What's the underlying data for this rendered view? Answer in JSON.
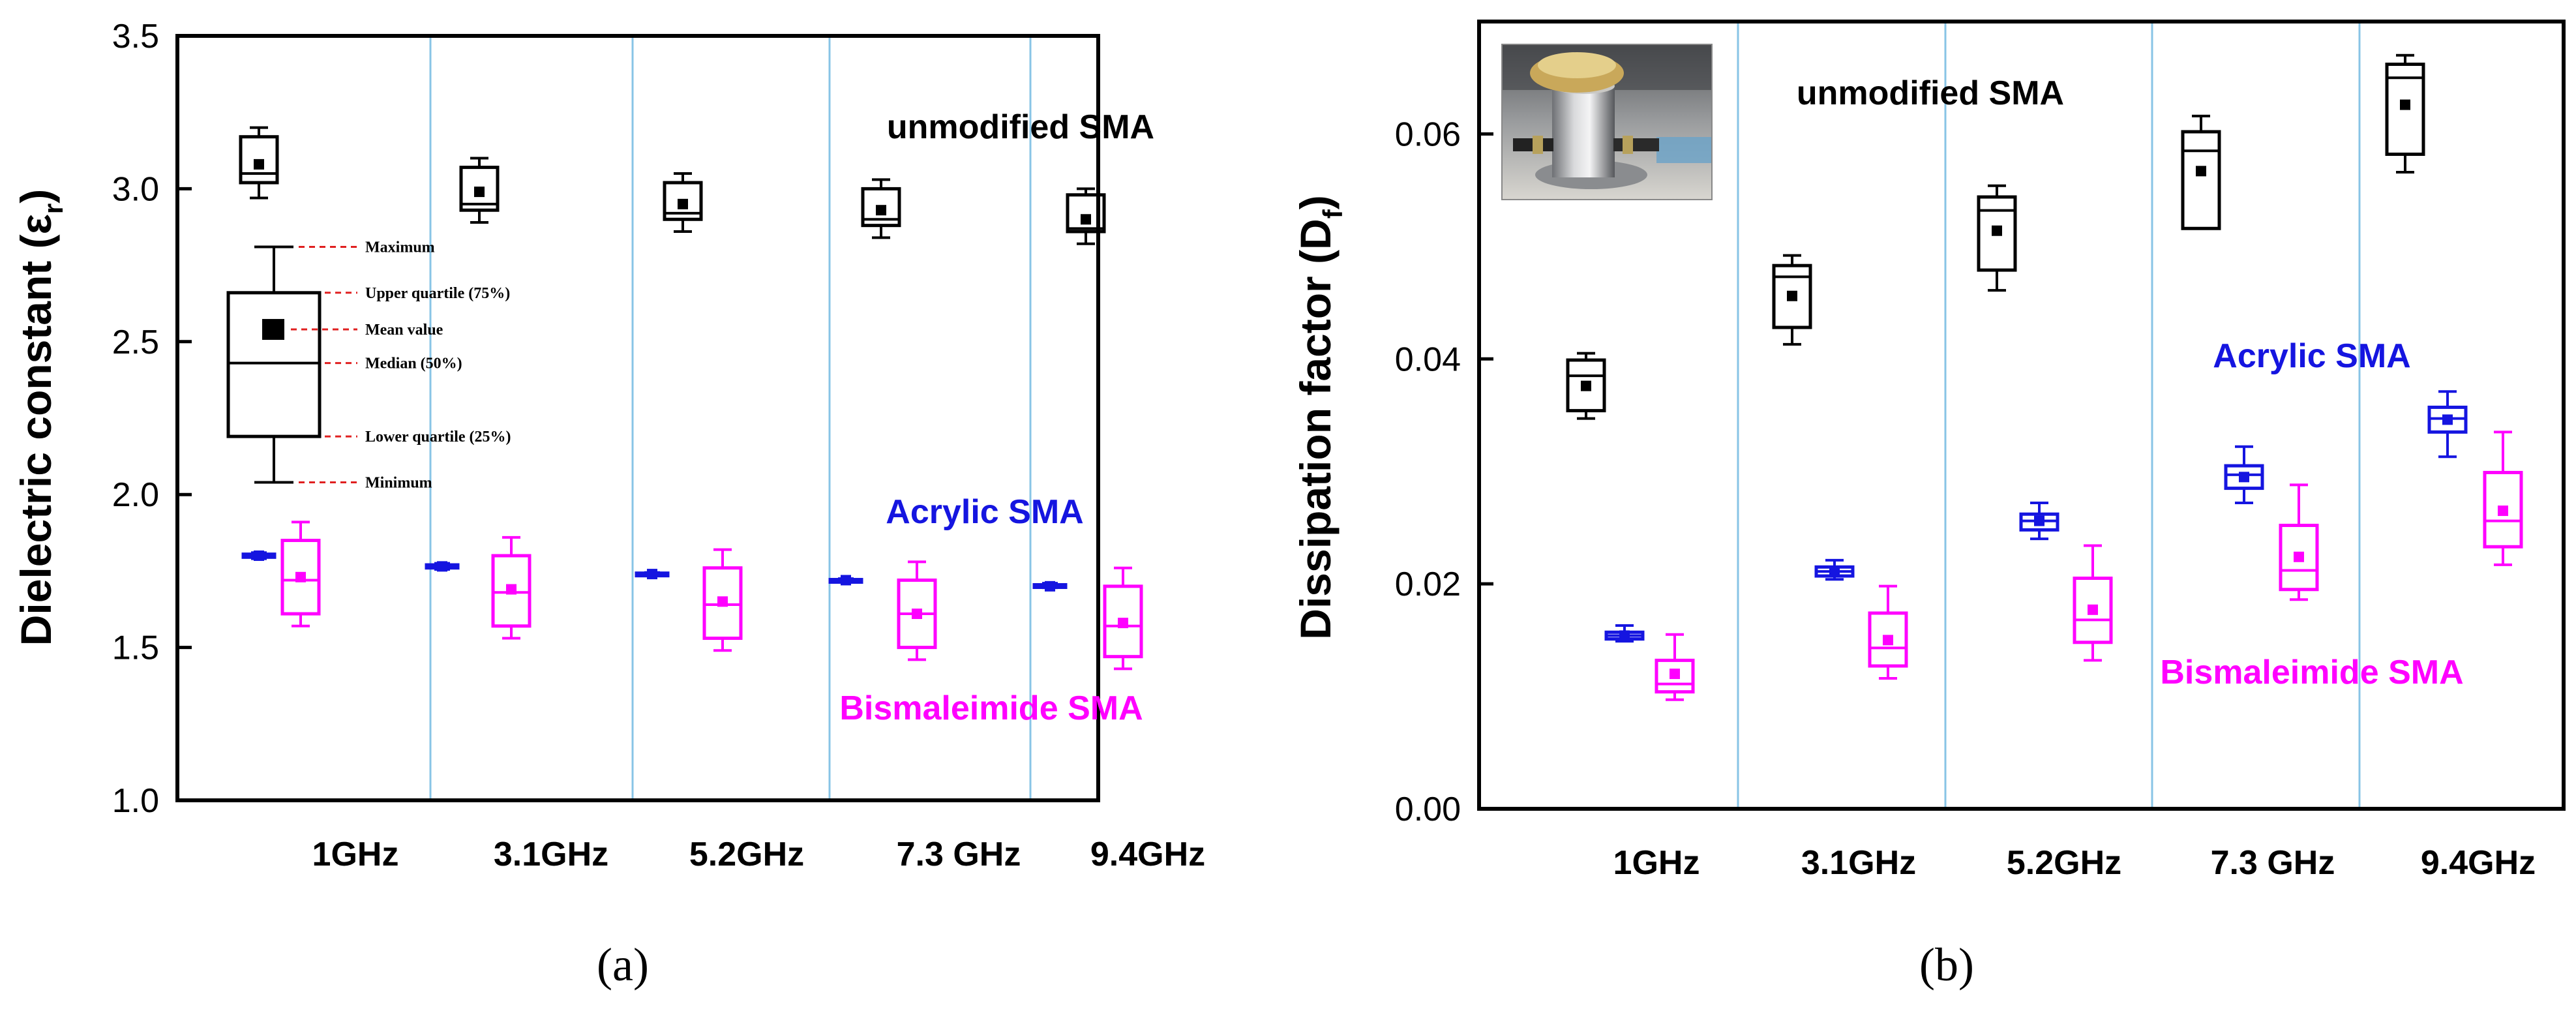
{
  "colors": {
    "unmodified": "#000000",
    "acrylic": "#1515e0",
    "bismaleimide": "#ff00ff",
    "separator": "#88c4e6",
    "legend_guide": "#e02020"
  },
  "chart_data": [
    {
      "type": "box",
      "panel_label": "(a)",
      "ylabel": "Dielectric constant (ε",
      "ylabel_sub": "r",
      "ylabel_close": ")",
      "ylim": [
        1.0,
        3.5
      ],
      "yticks": [
        "1.0",
        "1.5",
        "2.0",
        "2.5",
        "3.0",
        "3.5"
      ],
      "ytick_values": [
        1.0,
        1.5,
        2.0,
        2.5,
        3.0,
        3.5
      ],
      "categories": [
        "1GHz",
        "3.1GHz",
        "5.2GHz",
        "7.3 GHz",
        "9.4GHz"
      ],
      "series_labels": {
        "unmodified": "unmodified SMA",
        "acrylic": "Acrylic SMA",
        "bismaleimide": "Bismaleimide SMA"
      },
      "series": [
        {
          "name": "unmodified SMA",
          "key": "unmodified",
          "boxes": [
            {
              "min": 2.97,
              "q1": 3.02,
              "median": 3.05,
              "q3": 3.17,
              "max": 3.2,
              "mean": 3.08
            },
            {
              "min": 2.89,
              "q1": 2.93,
              "median": 2.95,
              "q3": 3.07,
              "max": 3.1,
              "mean": 2.99
            },
            {
              "min": 2.86,
              "q1": 2.9,
              "median": 2.92,
              "q3": 3.02,
              "max": 3.05,
              "mean": 2.95
            },
            {
              "min": 2.84,
              "q1": 2.88,
              "median": 2.9,
              "q3": 3.0,
              "max": 3.03,
              "mean": 2.93
            },
            {
              "min": 2.82,
              "q1": 2.86,
              "median": 2.87,
              "q3": 2.98,
              "max": 3.0,
              "mean": 2.9
            }
          ]
        },
        {
          "name": "Acrylic SMA",
          "key": "acrylic",
          "boxes": [
            {
              "min": 1.79,
              "q1": 1.795,
              "median": 1.8,
              "q3": 1.805,
              "max": 1.81,
              "mean": 1.8
            },
            {
              "min": 1.755,
              "q1": 1.76,
              "median": 1.765,
              "q3": 1.77,
              "max": 1.775,
              "mean": 1.765
            },
            {
              "min": 1.735,
              "q1": 1.738,
              "median": 1.74,
              "q3": 1.743,
              "max": 1.745,
              "mean": 1.74
            },
            {
              "min": 1.715,
              "q1": 1.718,
              "median": 1.72,
              "q3": 1.722,
              "max": 1.725,
              "mean": 1.72
            },
            {
              "min": 1.695,
              "q1": 1.7,
              "median": 1.7,
              "q3": 1.705,
              "max": 1.71,
              "mean": 1.7
            }
          ]
        },
        {
          "name": "Bismaleimide SMA",
          "key": "bismaleimide",
          "boxes": [
            {
              "min": 1.57,
              "q1": 1.61,
              "median": 1.72,
              "q3": 1.85,
              "max": 1.91,
              "mean": 1.73
            },
            {
              "min": 1.53,
              "q1": 1.57,
              "median": 1.68,
              "q3": 1.8,
              "max": 1.86,
              "mean": 1.69
            },
            {
              "min": 1.49,
              "q1": 1.53,
              "median": 1.64,
              "q3": 1.76,
              "max": 1.82,
              "mean": 1.65
            },
            {
              "min": 1.46,
              "q1": 1.5,
              "median": 1.61,
              "q3": 1.72,
              "max": 1.78,
              "mean": 1.61
            },
            {
              "min": 1.43,
              "q1": 1.47,
              "median": 1.57,
              "q3": 1.7,
              "max": 1.76,
              "mean": 1.58
            }
          ]
        }
      ],
      "legend": {
        "example_box": {
          "min": 2.04,
          "q1": 2.19,
          "median": 2.43,
          "q3": 2.66,
          "max": 2.81,
          "mean": 2.54
        },
        "labels": [
          "Maximum",
          "Upper quartile (75%)",
          "Mean value",
          "Median (50%)",
          "Lower quartile (25%)",
          "Minimum"
        ]
      }
    },
    {
      "type": "box",
      "panel_label": "(b)",
      "ylabel": "Dissipation factor (D",
      "ylabel_sub": "f",
      "ylabel_close": ")",
      "ylim": [
        0.0,
        0.07
      ],
      "yticks": [
        "0.00",
        "0.02",
        "0.04",
        "0.06"
      ],
      "ytick_values": [
        0.0,
        0.02,
        0.04,
        0.06
      ],
      "categories": [
        "1GHz",
        "3.1GHz",
        "5.2GHz",
        "7.3 GHz",
        "9.4GHz"
      ],
      "series_labels": {
        "unmodified": "unmodified SMA",
        "acrylic": "Acrylic SMA",
        "bismaleimide": "Bismaleimide SMA"
      },
      "series": [
        {
          "name": "unmodified SMA",
          "key": "unmodified",
          "boxes": [
            {
              "min": 0.0347,
              "q1": 0.0354,
              "median": 0.0385,
              "q3": 0.0399,
              "max": 0.0405,
              "mean": 0.0376
            },
            {
              "min": 0.0413,
              "q1": 0.0428,
              "median": 0.0473,
              "q3": 0.0483,
              "max": 0.0492,
              "mean": 0.0456
            },
            {
              "min": 0.0461,
              "q1": 0.0479,
              "median": 0.0532,
              "q3": 0.0544,
              "max": 0.0554,
              "mean": 0.0514
            },
            {
              "min": 0.0516,
              "q1": 0.0516,
              "median": 0.0585,
              "q3": 0.0602,
              "max": 0.0616,
              "mean": 0.0567
            },
            {
              "min": 0.0566,
              "q1": 0.0582,
              "median": 0.065,
              "q3": 0.0662,
              "max": 0.067,
              "mean": 0.0626
            }
          ]
        },
        {
          "name": "Acrylic SMA",
          "key": "acrylic",
          "boxes": [
            {
              "min": 0.0149,
              "q1": 0.0151,
              "median": 0.0154,
              "q3": 0.0157,
              "max": 0.0163,
              "mean": 0.0154
            },
            {
              "min": 0.0204,
              "q1": 0.0207,
              "median": 0.0211,
              "q3": 0.0215,
              "max": 0.0221,
              "mean": 0.0211
            },
            {
              "min": 0.024,
              "q1": 0.0248,
              "median": 0.0256,
              "q3": 0.0262,
              "max": 0.0272,
              "mean": 0.0256
            },
            {
              "min": 0.0272,
              "q1": 0.0285,
              "median": 0.0297,
              "q3": 0.0305,
              "max": 0.0322,
              "mean": 0.0295
            },
            {
              "min": 0.0313,
              "q1": 0.0335,
              "median": 0.0347,
              "q3": 0.0357,
              "max": 0.0371,
              "mean": 0.0346
            }
          ]
        },
        {
          "name": "Bismaleimide SMA",
          "key": "bismaleimide",
          "boxes": [
            {
              "min": 0.0097,
              "q1": 0.0104,
              "median": 0.0111,
              "q3": 0.0132,
              "max": 0.0155,
              "mean": 0.012
            },
            {
              "min": 0.0116,
              "q1": 0.0127,
              "median": 0.0143,
              "q3": 0.0174,
              "max": 0.0198,
              "mean": 0.015
            },
            {
              "min": 0.0132,
              "q1": 0.0148,
              "median": 0.0168,
              "q3": 0.0205,
              "max": 0.0234,
              "mean": 0.0177
            },
            {
              "min": 0.0186,
              "q1": 0.0195,
              "median": 0.0212,
              "q3": 0.0252,
              "max": 0.0288,
              "mean": 0.0224
            },
            {
              "min": 0.0217,
              "q1": 0.0233,
              "median": 0.0256,
              "q3": 0.0299,
              "max": 0.0335,
              "mean": 0.0265
            }
          ]
        }
      ],
      "photo": {
        "description_name": "measurement-apparatus-photo"
      }
    }
  ]
}
